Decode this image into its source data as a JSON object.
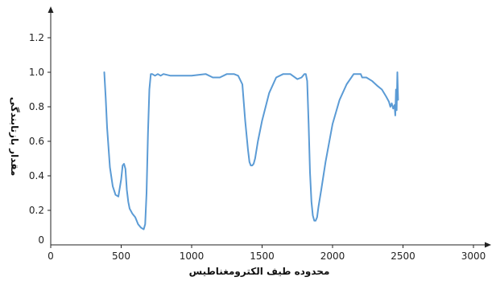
{
  "chart_data": {
    "type": "line",
    "title": "",
    "xlabel": "محدوده طیف الکترومغناطیس",
    "ylabel": "مقدار بازتابندگی",
    "xlim": [
      0,
      3000
    ],
    "ylim": [
      0,
      1.4
    ],
    "x_ticks": [
      0,
      500,
      1000,
      1500,
      2000,
      2500,
      3000
    ],
    "y_ticks": [
      0,
      0.2,
      0.4,
      0.6,
      0.8,
      1.0,
      1.2
    ],
    "x_tick_labels": [
      "0",
      "500",
      "1000",
      "1500",
      "2000",
      "2500",
      "3000"
    ],
    "y_tick_labels": [
      "0",
      "0.2",
      "0.4",
      "0.6",
      "0.8",
      "1.0",
      "1.2"
    ],
    "grid": false,
    "line_color": "#5b9bd5",
    "series": [
      {
        "x": [
          380,
          390,
          400,
          420,
          440,
          460,
          480,
          500,
          510,
          520,
          530,
          540,
          550,
          560,
          580,
          600,
          620,
          640,
          660,
          670,
          680,
          690,
          700,
          710,
          720,
          740,
          760,
          780,
          800,
          850,
          900,
          1000,
          1100,
          1150,
          1200,
          1250,
          1300,
          1330,
          1360,
          1380,
          1400,
          1410,
          1420,
          1430,
          1440,
          1450,
          1470,
          1500,
          1550,
          1600,
          1650,
          1700,
          1750,
          1780,
          1800,
          1810,
          1820,
          1830,
          1840,
          1850,
          1860,
          1870,
          1880,
          1890,
          1900,
          1920,
          1950,
          2000,
          2050,
          2100,
          2150,
          2200,
          2210,
          2240,
          2280,
          2320,
          2350,
          2380,
          2400,
          2410,
          2420,
          2430,
          2440,
          2445,
          2450,
          2455,
          2460,
          2465
        ],
        "values": [
          1.0,
          0.85,
          0.68,
          0.45,
          0.34,
          0.29,
          0.28,
          0.38,
          0.46,
          0.47,
          0.44,
          0.32,
          0.25,
          0.21,
          0.18,
          0.16,
          0.12,
          0.1,
          0.09,
          0.12,
          0.3,
          0.65,
          0.9,
          0.99,
          0.99,
          0.98,
          0.99,
          0.98,
          0.99,
          0.98,
          0.98,
          0.98,
          0.99,
          0.97,
          0.97,
          0.99,
          0.99,
          0.98,
          0.93,
          0.72,
          0.55,
          0.48,
          0.46,
          0.46,
          0.47,
          0.5,
          0.6,
          0.72,
          0.88,
          0.97,
          0.99,
          0.99,
          0.96,
          0.97,
          0.99,
          0.99,
          0.95,
          0.7,
          0.42,
          0.25,
          0.17,
          0.14,
          0.14,
          0.16,
          0.22,
          0.32,
          0.48,
          0.7,
          0.84,
          0.93,
          0.99,
          0.99,
          0.97,
          0.97,
          0.95,
          0.92,
          0.9,
          0.86,
          0.83,
          0.8,
          0.82,
          0.79,
          0.81,
          0.75,
          0.9,
          0.78,
          1.0,
          0.84
        ]
      }
    ]
  }
}
